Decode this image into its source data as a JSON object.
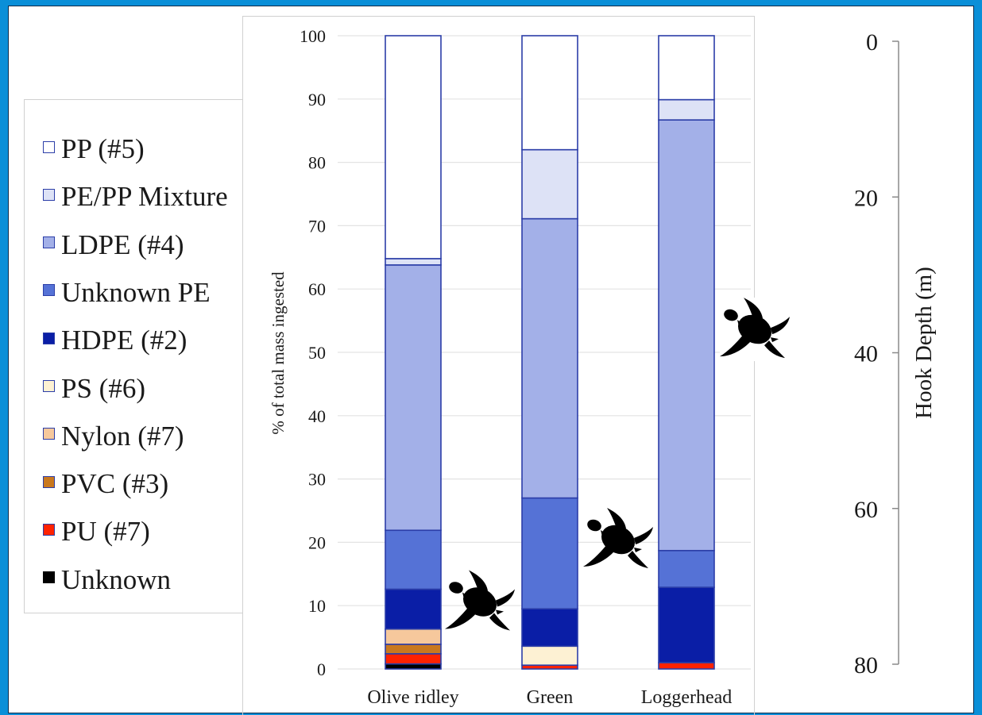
{
  "chart_data": {
    "type": "bar",
    "stacked": true,
    "categories": [
      "Olive ridley",
      "Green",
      "Loggerhead"
    ],
    "ylabel": "% of total mass ingested",
    "ylim": [
      0,
      100
    ],
    "yticks": [
      0,
      10,
      20,
      30,
      40,
      50,
      60,
      70,
      80,
      90,
      100
    ],
    "grid": true,
    "legend_position": "left",
    "series": [
      {
        "name": "Unknown",
        "color": "#000000",
        "values": [
          0.8,
          0.0,
          0.0
        ]
      },
      {
        "name": "PU (#7)",
        "color": "#ff2200",
        "values": [
          1.6,
          0.6,
          1.0
        ]
      },
      {
        "name": "PVC (#3)",
        "color": "#c9781e",
        "values": [
          1.5,
          0.0,
          0.0
        ]
      },
      {
        "name": "Nylon (#7)",
        "color": "#f6c89c",
        "values": [
          2.4,
          0.0,
          0.0
        ]
      },
      {
        "name": "PS (#6)",
        "color": "#fdf1d3",
        "values": [
          0.0,
          3.0,
          0.0
        ]
      },
      {
        "name": "HDPE (#2)",
        "color": "#0a1ea6",
        "values": [
          6.3,
          5.9,
          11.9
        ]
      },
      {
        "name": "Unknown PE",
        "color": "#5572d6",
        "values": [
          9.3,
          17.5,
          5.8
        ]
      },
      {
        "name": "LDPE (#4)",
        "color": "#a3b0e8",
        "values": [
          41.9,
          44.1,
          68.0
        ]
      },
      {
        "name": "PE/PP Mixture",
        "color": "#dde2f6",
        "values": [
          1.0,
          10.9,
          3.2
        ]
      },
      {
        "name": "PP (#5)",
        "color": "#ffffff",
        "values": [
          35.2,
          18.0,
          10.1
        ]
      }
    ],
    "secondary_axis": {
      "label": "Hook Depth (m)",
      "range": [
        0,
        80
      ],
      "ticks": [
        0,
        20,
        40,
        60,
        80
      ],
      "inverted": true
    },
    "markers": [
      {
        "category": "Olive ridley",
        "depth_m": 72,
        "icon": "sea-turtle-icon"
      },
      {
        "category": "Green",
        "depth_m": 64,
        "icon": "sea-turtle-icon"
      },
      {
        "category": "Loggerhead",
        "depth_m": 37,
        "icon": "sea-turtle-icon"
      }
    ]
  },
  "legend": {
    "items": [
      {
        "label": "PP (#5)",
        "color": "#ffffff"
      },
      {
        "label": "PE/PP Mixture",
        "color": "#dde2f6"
      },
      {
        "label": "LDPE (#4)",
        "color": "#a3b0e8"
      },
      {
        "label": "Unknown PE",
        "color": "#5572d6"
      },
      {
        "label": "HDPE (#2)",
        "color": "#0a1ea6"
      },
      {
        "label": "PS (#6)",
        "color": "#fdf1d3"
      },
      {
        "label": "Nylon (#7)",
        "color": "#f6c89c"
      },
      {
        "label": "PVC (#3)",
        "color": "#c9781e"
      },
      {
        "label": "PU (#7)",
        "color": "#ff2200"
      },
      {
        "label": "Unknown",
        "color": "#000000"
      }
    ]
  },
  "colors": {
    "frame": "#0a8fd8",
    "bar_outline": "#2c3ea8",
    "grid": "#e3e3e3"
  }
}
